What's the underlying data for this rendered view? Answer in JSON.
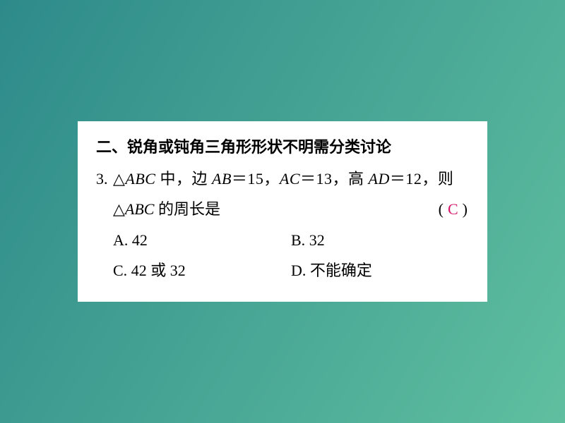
{
  "background": {
    "gradient_from": "#2d8a8a",
    "gradient_to": "#5fbf9f"
  },
  "card": {
    "bg_color": "#ffffff",
    "text_color": "#000000",
    "font_size_pt": 16
  },
  "section_title": "二、锐角或钝角三角形形状不明需分类讨论",
  "question": {
    "number": "3.",
    "stem_line1_pre": "△",
    "stem_line1_abc": "ABC",
    "stem_line1_mid1": " 中，边 ",
    "stem_line1_ab": "AB",
    "stem_line1_eq1": "＝15，",
    "stem_line1_ac": "AC",
    "stem_line1_eq2": "＝13，高 ",
    "stem_line1_ad": "AD",
    "stem_line1_eq3": "＝12，则",
    "stem_line2_pre": "△",
    "stem_line2_abc": "ABC",
    "stem_line2_post": " 的周长是",
    "paren_open": "(",
    "paren_close": ")",
    "answer": "C",
    "answer_color": "#d6186c"
  },
  "options": {
    "a_key": "A. ",
    "a_text": "42",
    "b_key": "B. ",
    "b_text": "32",
    "c_key": "C. ",
    "c_text": "42 或 32",
    "d_key": "D. ",
    "d_text": "不能确定"
  }
}
